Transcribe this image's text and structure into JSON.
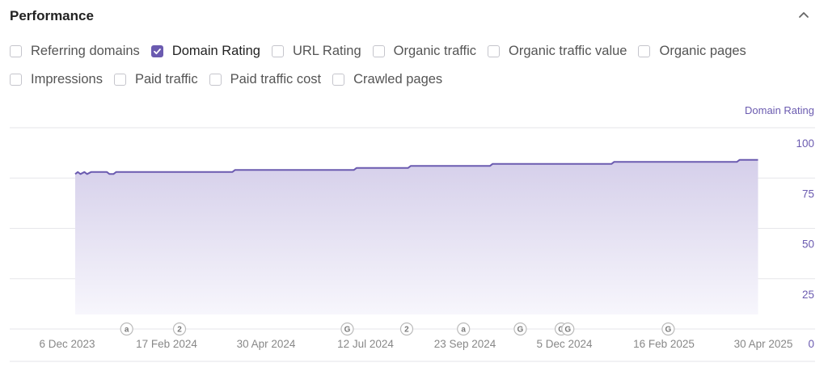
{
  "panel": {
    "title": "Performance",
    "collapse_icon": "chevron-up-icon"
  },
  "checkboxes_row1": [
    {
      "label": "Referring domains",
      "checked": false
    },
    {
      "label": "Domain Rating",
      "checked": true
    },
    {
      "label": "URL Rating",
      "checked": false
    },
    {
      "label": "Organic traffic",
      "checked": false
    },
    {
      "label": "Organic traffic value",
      "checked": false
    },
    {
      "label": "Organic pages",
      "checked": false
    }
  ],
  "checkboxes_row2": [
    {
      "label": "Impressions",
      "checked": false
    },
    {
      "label": "Paid traffic",
      "checked": false
    },
    {
      "label": "Paid traffic cost",
      "checked": false
    },
    {
      "label": "Crawled pages",
      "checked": false
    }
  ],
  "colors": {
    "accent": "#6b5bb0",
    "area_top": "#d5cfea",
    "area_bottom": "#f7f6fc",
    "grid": "#e6e6ea"
  },
  "chart_data": {
    "type": "area",
    "series_label": "Domain Rating",
    "x_tick_labels": [
      "6 Dec 2023",
      "17 Feb 2024",
      "30 Apr 2024",
      "12 Jul 2024",
      "23 Sep 2024",
      "5 Dec 2024",
      "16 Feb 2025",
      "30 Apr 2025"
    ],
    "y_ticks": [
      0,
      25,
      50,
      75,
      100
    ],
    "ylim": [
      0,
      100
    ],
    "xlim": [
      "2023-11-25",
      "2025-05-10"
    ],
    "grid": true,
    "y_axis_position": "right",
    "series": [
      {
        "name": "Domain Rating",
        "points": [
          [
            "2023-12-06",
            77
          ],
          [
            "2023-12-08",
            78
          ],
          [
            "2023-12-10",
            77
          ],
          [
            "2023-12-13",
            78
          ],
          [
            "2023-12-15",
            77
          ],
          [
            "2023-12-18",
            78
          ],
          [
            "2023-12-30",
            78
          ],
          [
            "2024-01-01",
            77
          ],
          [
            "2024-01-04",
            77
          ],
          [
            "2024-01-06",
            78
          ],
          [
            "2024-02-08",
            78
          ],
          [
            "2024-04-03",
            78
          ],
          [
            "2024-04-05",
            79
          ],
          [
            "2024-07-04",
            79
          ],
          [
            "2024-07-06",
            80
          ],
          [
            "2024-08-14",
            80
          ],
          [
            "2024-08-16",
            81
          ],
          [
            "2024-10-15",
            81
          ],
          [
            "2024-10-17",
            82
          ],
          [
            "2025-01-15",
            82
          ],
          [
            "2025-01-17",
            83
          ],
          [
            "2025-04-20",
            83
          ],
          [
            "2025-04-22",
            84
          ],
          [
            "2025-05-06",
            84
          ]
        ]
      }
    ],
    "annotations": [
      {
        "date": "2024-01-14",
        "label": "a"
      },
      {
        "date": "2024-02-23",
        "label": "2"
      },
      {
        "date": "2024-06-29",
        "label": "G"
      },
      {
        "date": "2024-08-13",
        "label": "2"
      },
      {
        "date": "2024-09-25",
        "label": "a"
      },
      {
        "date": "2024-11-07",
        "label": "G"
      },
      {
        "date": "2024-12-08",
        "label": "G"
      },
      {
        "date": "2024-12-13",
        "label": "G"
      },
      {
        "date": "2025-02-27",
        "label": "G"
      }
    ]
  }
}
